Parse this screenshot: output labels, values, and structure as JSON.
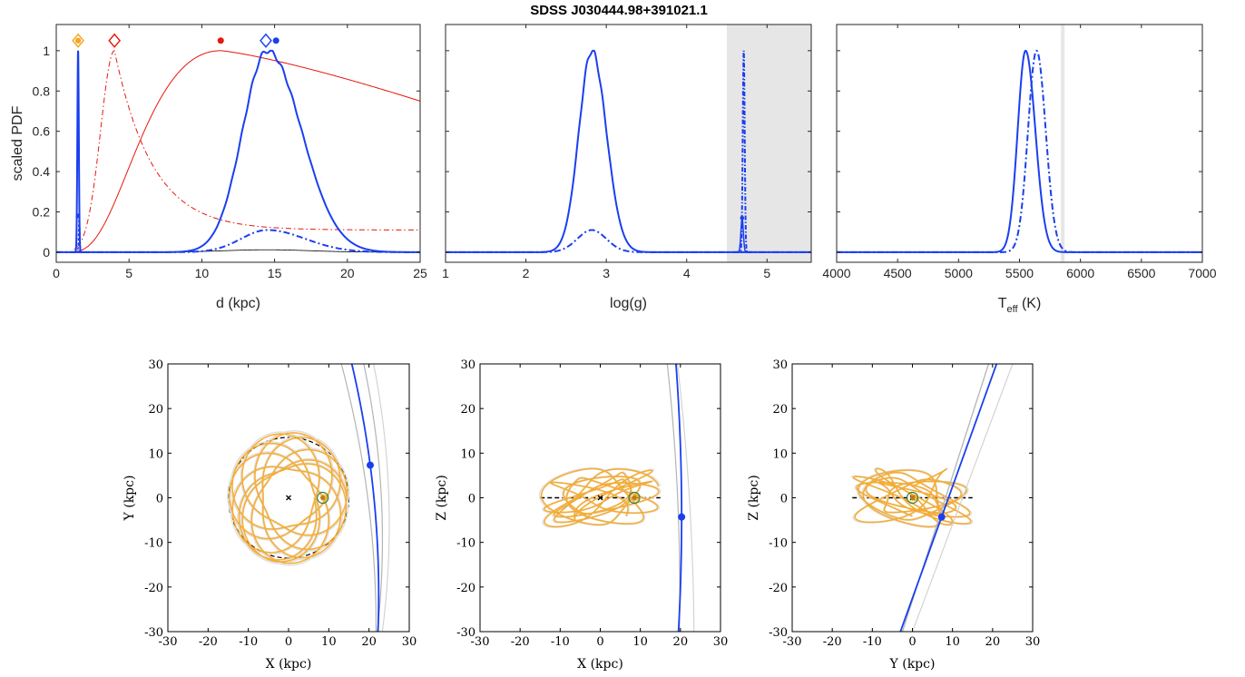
{
  "title": "SDSS J030444.98+391021.1",
  "colors": {
    "blue": "#1a3ff0",
    "red": "#e8160c",
    "orange": "#f5a623",
    "shade": "#e6e6e6",
    "gray": "#b4b4b4",
    "green": "#2e7d32"
  },
  "chart_data": [
    {
      "type": "line",
      "id": "distance-pdf",
      "xlabel": "d (kpc)",
      "ylabel": "scaled PDF",
      "xlim": [
        0,
        25
      ],
      "ylim": [
        -0.05,
        1.13
      ],
      "xticks": [
        0,
        5,
        10,
        15,
        20,
        25
      ],
      "xtick_labels": [
        "0",
        "5",
        "10",
        "15",
        "20",
        "25"
      ],
      "yticks": [
        0,
        0.2,
        0.4,
        0.6,
        0.8,
        1
      ],
      "ytick_labels": [
        "0",
        "0.2",
        "0.4",
        "0.6",
        "0.8",
        "1"
      ],
      "series": [
        {
          "style": "blue-solid-peak",
          "center": 14.5,
          "sigma": 2.0,
          "amp": 1.0
        },
        {
          "style": "blue-dashdot-peak",
          "center": 14.5,
          "sigma": 2.0,
          "amp": 0.11
        },
        {
          "style": "blue-narrow-spike",
          "center": 1.5,
          "sigma": 0.05,
          "amp": 1.0
        },
        {
          "style": "red-solid-prior",
          "peak_x": 11.3,
          "end_value": 0.75
        },
        {
          "style": "red-dashdot-prior",
          "peak_x": 4.0,
          "tail_value": 0.11
        },
        {
          "style": "black-thin",
          "center": 14.5,
          "amp": 0.01
        }
      ],
      "markers": [
        {
          "x": 1.5,
          "y": 1.05,
          "style": "orange-diamond-filled"
        },
        {
          "x": 4.0,
          "y": 1.05,
          "style": "red-diamond-open"
        },
        {
          "x": 11.3,
          "y": 1.05,
          "style": "red-dot"
        },
        {
          "x": 14.4,
          "y": 1.05,
          "style": "blue-diamond-open"
        },
        {
          "x": 15.1,
          "y": 1.05,
          "style": "blue-dot"
        }
      ]
    },
    {
      "type": "line",
      "id": "logg-pdf",
      "xlabel": "log(g)",
      "xlim": [
        1,
        5.55
      ],
      "ylim": [
        -0.05,
        1.13
      ],
      "xticks": [
        1,
        2,
        3,
        4,
        5
      ],
      "xtick_labels": [
        "1",
        "2",
        "3",
        "4",
        "5"
      ],
      "shaded_xrange": [
        4.5,
        5.55
      ],
      "series": [
        {
          "style": "blue-solid-peak",
          "center": 2.82,
          "sigma": 0.17,
          "amp": 1.0
        },
        {
          "style": "blue-dashdot-peak",
          "center": 2.82,
          "sigma": 0.17,
          "amp": 0.11
        },
        {
          "style": "blue-narrow-spike",
          "center": 4.71,
          "sigma": 0.015,
          "amp": 1.0
        }
      ]
    },
    {
      "type": "line",
      "id": "teff-pdf",
      "xlabel": "T_eff (K)",
      "xlim": [
        4000,
        7000
      ],
      "ylim": [
        -0.05,
        1.13
      ],
      "xticks": [
        4000,
        4500,
        5000,
        5500,
        6000,
        6500,
        7000
      ],
      "xtick_labels": [
        "4000",
        "4500",
        "5000",
        "5500",
        "6000",
        "6500",
        "7000"
      ],
      "shaded_xrange": [
        5840,
        5870
      ],
      "series": [
        {
          "style": "blue-solid-peak",
          "center": 5550,
          "sigma": 75,
          "amp": 1.0
        },
        {
          "style": "blue-dashdot-peak",
          "center": 5640,
          "sigma": 75,
          "amp": 1.0
        }
      ]
    },
    {
      "type": "line",
      "id": "orbit-xy",
      "xlabel": "X (kpc)",
      "ylabel": "Y (kpc)",
      "xlim": [
        -30,
        30
      ],
      "ylim": [
        -30,
        30
      ],
      "ticks": [
        -30,
        -20,
        -10,
        0,
        10,
        20,
        30
      ],
      "tick_labels": [
        "-30",
        "-20",
        "-10",
        "0",
        "10",
        "20",
        "30"
      ],
      "star_position": [
        20.3,
        7.3
      ],
      "sun_position": [
        8.5,
        0
      ],
      "gc_position": [
        0,
        0
      ],
      "disk_radius": 15
    },
    {
      "type": "line",
      "id": "orbit-xz",
      "xlabel": "X (kpc)",
      "ylabel": "Z (kpc)",
      "xlim": [
        -30,
        30
      ],
      "ylim": [
        -30,
        30
      ],
      "ticks": [
        -30,
        -20,
        -10,
        0,
        10,
        20,
        30
      ],
      "tick_labels": [
        "-30",
        "-20",
        "-10",
        "0",
        "10",
        "20",
        "30"
      ],
      "star_position": [
        20.3,
        -4.3
      ],
      "sun_position": [
        8.5,
        0
      ],
      "gc_position": [
        0,
        0
      ],
      "disk_radius": 15
    },
    {
      "type": "line",
      "id": "orbit-yz",
      "xlabel": "Y (kpc)",
      "ylabel": "Z (kpc)",
      "xlim": [
        -30,
        30
      ],
      "ylim": [
        -30,
        30
      ],
      "ticks": [
        -30,
        -20,
        -10,
        0,
        10,
        20,
        30
      ],
      "tick_labels": [
        "-30",
        "-20",
        "-10",
        "0",
        "10",
        "20",
        "30"
      ],
      "star_position": [
        7.3,
        -4.3
      ],
      "sun_position": [
        0,
        0
      ],
      "gc_position": [
        0,
        0
      ],
      "disk_radius": 15
    }
  ]
}
